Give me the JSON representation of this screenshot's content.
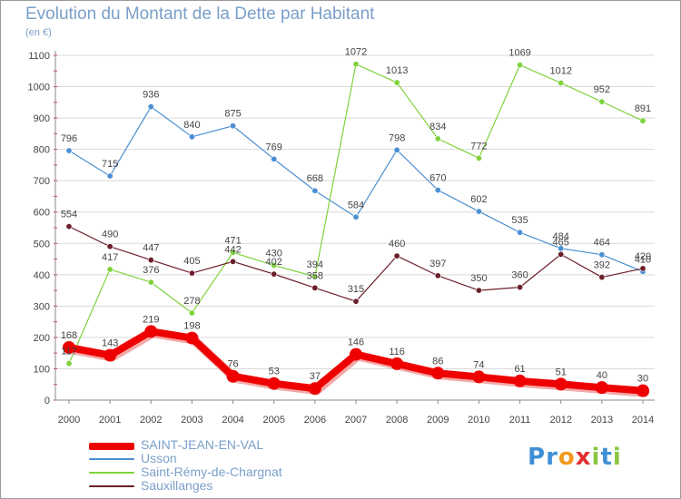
{
  "chart_data": {
    "type": "line",
    "title": "Evolution du Montant de la Dette par Habitant",
    "subtitle": "(en €)",
    "categories": [
      "2000",
      "2001",
      "2002",
      "2003",
      "2004",
      "2005",
      "2006",
      "2007",
      "2008",
      "2009",
      "2010",
      "2011",
      "2012",
      "2013",
      "2014"
    ],
    "ylim": [
      0,
      1100
    ],
    "yticks": [
      0,
      100,
      200,
      300,
      400,
      500,
      600,
      700,
      800,
      900,
      1000,
      1100
    ],
    "grid": true,
    "legend_position": "bottom-left",
    "series": [
      {
        "name": "SAINT-JEAN-EN-VAL",
        "color": "#ee0000",
        "emphasis": true,
        "values": [
          168,
          143,
          219,
          198,
          76,
          53,
          37,
          146,
          116,
          86,
          74,
          61,
          51,
          40,
          30
        ]
      },
      {
        "name": "Usson",
        "color": "#4a8fd2",
        "values": [
          796,
          715,
          936,
          840,
          875,
          769,
          668,
          584,
          798,
          670,
          602,
          535,
          484,
          464,
          410
        ]
      },
      {
        "name": "Saint-Rémy-de-Chargnat",
        "color": "#7ed23c",
        "values": [
          117,
          417,
          376,
          278,
          471,
          430,
          394,
          1072,
          1013,
          834,
          772,
          1069,
          1012,
          952,
          891
        ]
      },
      {
        "name": "Sauxillanges",
        "color": "#6b1f2a",
        "values": [
          554,
          490,
          447,
          405,
          442,
          402,
          358,
          315,
          460,
          397,
          350,
          360,
          465,
          392,
          420
        ]
      }
    ]
  },
  "logo": {
    "letters": [
      "P",
      "r",
      "o",
      "x",
      "i",
      "t",
      "i"
    ],
    "colors": [
      "#3f8fd6",
      "#3f8fd6",
      "#f29a1f",
      "#e03030",
      "#8ac640",
      "#3f8fd6",
      "#8ac640"
    ]
  }
}
